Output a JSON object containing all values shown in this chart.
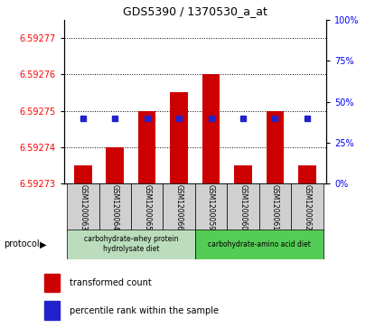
{
  "title": "GDS5390 / 1370530_a_at",
  "samples": [
    "GSM1200063",
    "GSM1200064",
    "GSM1200065",
    "GSM1200066",
    "GSM1200059",
    "GSM1200060",
    "GSM1200061",
    "GSM1200062"
  ],
  "red_tops": [
    6.592735,
    6.59274,
    6.59275,
    6.592755,
    6.59276,
    6.592735,
    6.59275,
    6.592735
  ],
  "blue_y": [
    6.592748,
    6.592748,
    6.592748,
    6.592748,
    6.592748,
    6.592748,
    6.592748,
    6.592748
  ],
  "ymin": 6.59273,
  "ymax": 6.592775,
  "yticks": [
    6.59273,
    6.59274,
    6.59275,
    6.59276,
    6.59277
  ],
  "yright_min": 0,
  "yright_max": 100,
  "yright_ticks": [
    0,
    25,
    50,
    75,
    100
  ],
  "bar_color": "#cc0000",
  "dot_color": "#2222cc",
  "group1_color": "#bbddbb",
  "group2_color": "#55cc55",
  "group1_label": "carbohydrate-whey protein\nhydrolysate diet",
  "group2_label": "carbohydrate-amino acid diet",
  "protocol_label": "protocol",
  "legend_red": "transformed count",
  "legend_blue": "percentile rank within the sample",
  "bar_width": 0.55,
  "dot_size": 5
}
